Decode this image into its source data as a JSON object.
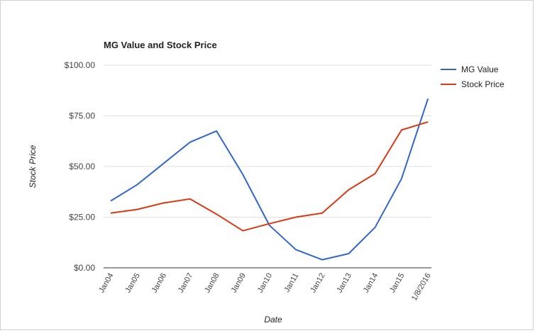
{
  "colors": {
    "mg_value": "#3366cc",
    "stock_price": "#dc3912",
    "grid": "#e0e0e0",
    "axis": "#333333"
  },
  "chart_data": {
    "type": "line",
    "title": "MG Value and Stock Price",
    "xlabel": "Date",
    "ylabel": "Stock Price",
    "categories": [
      "Jan04",
      "Jan05",
      "Jan06",
      "Jan07",
      "Jan08",
      "Jan09",
      "Jan10",
      "Jan11",
      "Jan12",
      "Jan13",
      "Jan14",
      "Jan15",
      "1/8/2016"
    ],
    "ylim": [
      0,
      100
    ],
    "yticks": [
      "$0.00",
      "$25.00",
      "$50.00",
      "$75.00",
      "$100.00"
    ],
    "ytick_values": [
      0,
      25,
      50,
      75,
      100
    ],
    "grid": true,
    "legend_position": "right",
    "series": [
      {
        "name": "MG Value",
        "color": "#3366cc",
        "values": [
          33,
          41,
          51.5,
          62,
          67.5,
          46,
          21,
          9,
          4,
          7,
          20,
          44,
          83.5
        ]
      },
      {
        "name": "Stock Price",
        "color": "#dc3912",
        "values": [
          27,
          28.8,
          32,
          34,
          26.5,
          18.3,
          21.8,
          25,
          27,
          38.5,
          46.5,
          68,
          72
        ]
      }
    ]
  }
}
